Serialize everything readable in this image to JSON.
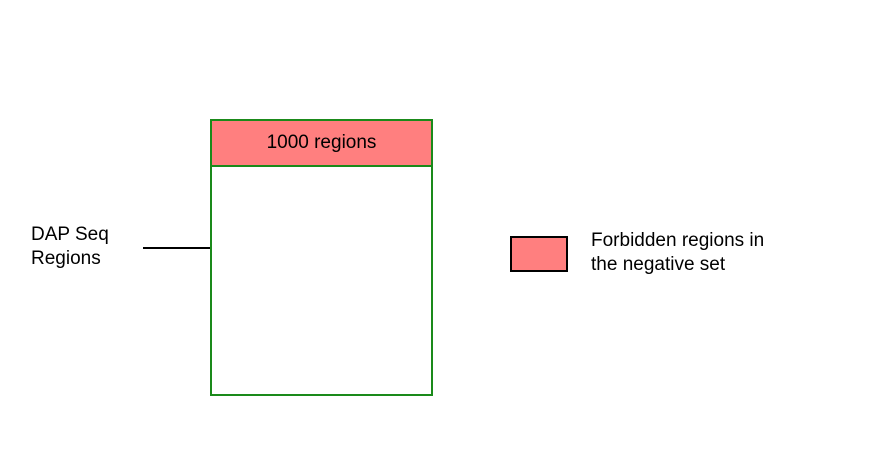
{
  "diagram": {
    "source_label": {
      "line1": "DAP Seq",
      "line2": "Regions"
    },
    "box": {
      "header_text": "1000 regions"
    },
    "legend": {
      "line1": "Forbidden regions in",
      "line2": "the negative set"
    }
  },
  "colors": {
    "forbidden_fill": "#ff7f7f",
    "box_border": "#1a8a1a",
    "text": "#000000"
  }
}
